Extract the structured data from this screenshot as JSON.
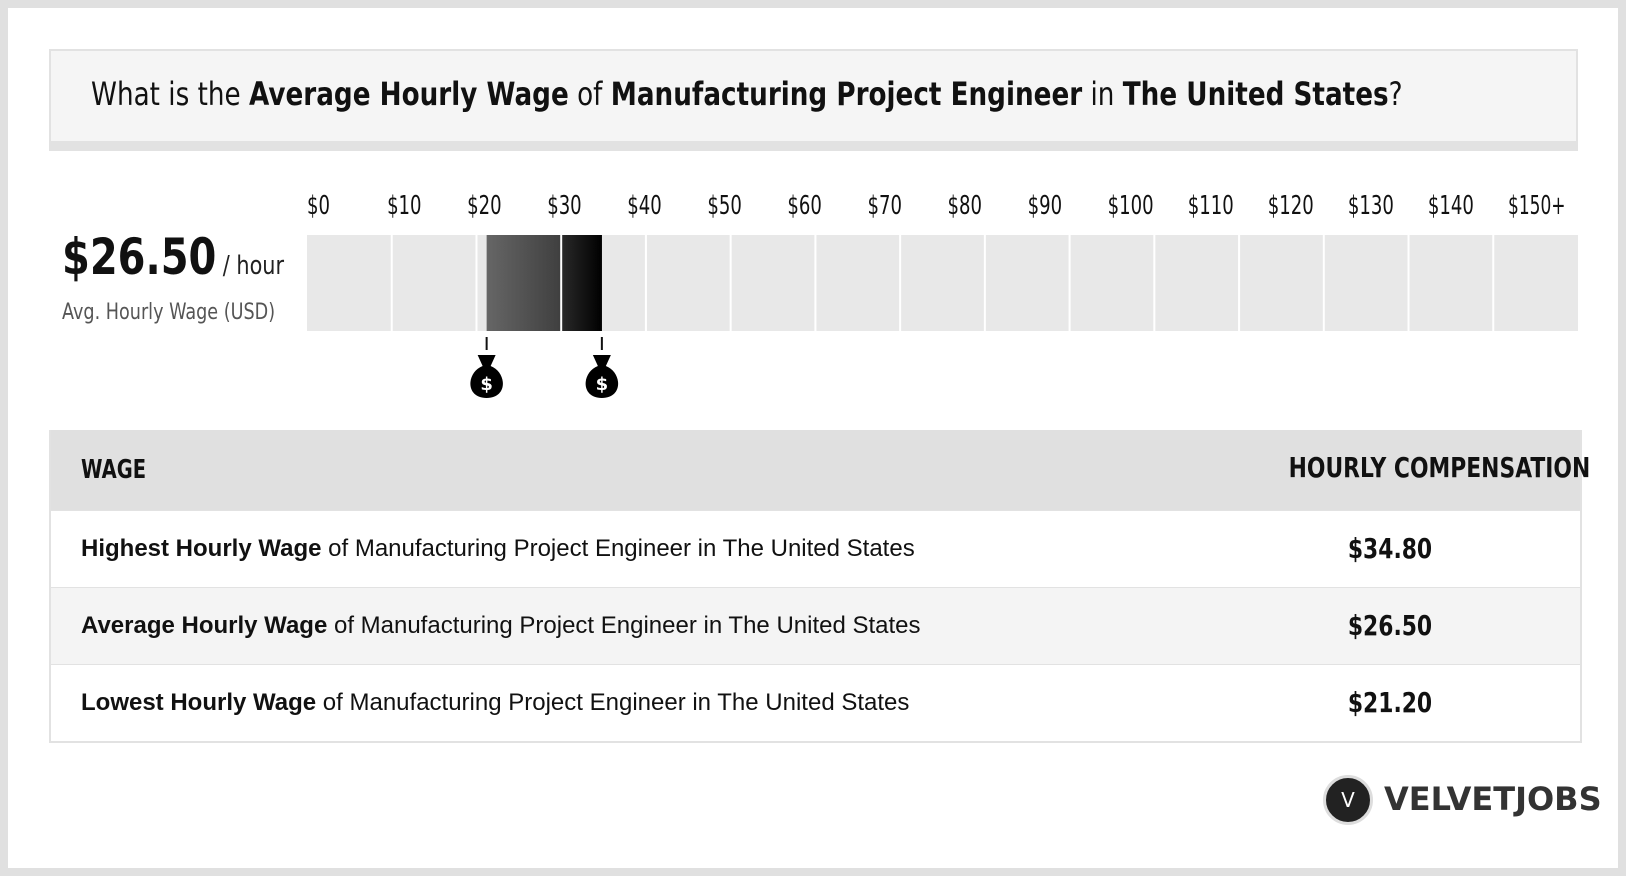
{
  "header": {
    "parts": [
      "What is the ",
      "Average Hourly Wage",
      " of ",
      "Manufacturing Project Engineer",
      " in ",
      "The United States",
      "?"
    ]
  },
  "summary": {
    "value": "$26.50",
    "unit": "/ hour",
    "label": "Avg. Hourly Wage (USD)"
  },
  "chart_data": {
    "type": "range",
    "xlim": [
      0,
      150
    ],
    "xticks": [
      {
        "value": 0,
        "label": "$0"
      },
      {
        "value": 10,
        "label": "$10"
      },
      {
        "value": 20,
        "label": "$20"
      },
      {
        "value": 30,
        "label": "$30"
      },
      {
        "value": 40,
        "label": "$40"
      },
      {
        "value": 50,
        "label": "$50"
      },
      {
        "value": 60,
        "label": "$60"
      },
      {
        "value": 70,
        "label": "$70"
      },
      {
        "value": 80,
        "label": "$80"
      },
      {
        "value": 90,
        "label": "$90"
      },
      {
        "value": 100,
        "label": "$100"
      },
      {
        "value": 110,
        "label": "$110"
      },
      {
        "value": 120,
        "label": "$120"
      },
      {
        "value": 130,
        "label": "$130"
      },
      {
        "value": 140,
        "label": "$140"
      },
      {
        "value": 150,
        "label": "$150+"
      }
    ],
    "low": 21.2,
    "high": 34.8
  },
  "table": {
    "header": [
      "WAGE",
      "HOURLY COMPENSATION"
    ],
    "rows": [
      [
        "Highest Hourly Wage",
        " of Manufacturing Project Engineer in The United States",
        "$34.80"
      ],
      [
        "Average Hourly Wage",
        " of Manufacturing Project Engineer in The United States",
        "$26.50"
      ],
      [
        "Lowest Hourly Wage",
        " of Manufacturing Project Engineer in The United States",
        "$21.20"
      ]
    ]
  },
  "logo": {
    "mark": "V",
    "name": "VELVETJOBS"
  }
}
